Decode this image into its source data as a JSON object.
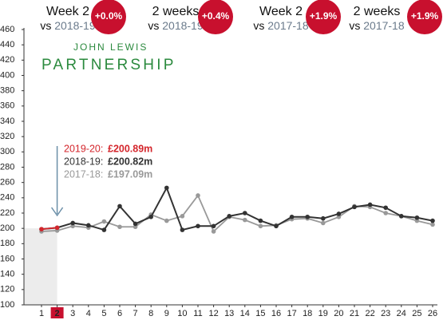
{
  "header": {
    "stats": [
      {
        "title": "Week 2",
        "vs": "vs",
        "period": "2018-19",
        "change": "+0.0%"
      },
      {
        "title": "2 weeks",
        "vs": "vs",
        "period": "2018-19",
        "change": "+0.4%"
      },
      {
        "title": "Week 2",
        "vs": "vs",
        "period": "2017-18",
        "change": "+1.9%"
      },
      {
        "title": "2 weeks",
        "vs": "vs",
        "period": "2017-18",
        "change": "+1.9%"
      }
    ]
  },
  "logo": {
    "line1": "JOHN LEWIS",
    "line2": "PARTNERSHIP"
  },
  "chart_data": {
    "type": "line",
    "categories": [
      "1",
      "2",
      "3",
      "4",
      "5",
      "6",
      "7",
      "8",
      "9",
      "10",
      "11",
      "12",
      "13",
      "14",
      "15",
      "16",
      "17",
      "18",
      "19",
      "20",
      "21",
      "22",
      "23",
      "24",
      "25",
      "26"
    ],
    "highlight_category": 1,
    "series": [
      {
        "name": "2019-20:",
        "total_label": "£200.89m",
        "color": "#d4262c",
        "values": [
          199,
          200.89,
          null,
          null,
          null,
          null,
          null,
          null,
          null,
          null,
          null,
          null,
          null,
          null,
          null,
          null,
          null,
          null,
          null,
          null,
          null,
          null,
          null,
          null,
          null,
          null
        ]
      },
      {
        "name": "2018-19:",
        "total_label": "£200.82m",
        "color": "#333333",
        "values": [
          199,
          200.82,
          207,
          204,
          198,
          229,
          206,
          215,
          253,
          198,
          203,
          203,
          216,
          220,
          210,
          203,
          215,
          215,
          213,
          219,
          228,
          231,
          227,
          216,
          214,
          210
        ]
      },
      {
        "name": "2017-18:",
        "total_label": "£197.09m",
        "color": "#999999",
        "values": [
          196,
          197.09,
          203,
          201,
          209,
          202,
          202,
          218,
          210,
          216,
          243,
          196,
          215,
          211,
          203,
          204,
          212,
          213,
          207,
          215,
          229,
          228,
          220,
          216,
          210,
          205
        ]
      }
    ],
    "ylim": [
      100,
      460
    ],
    "yticks": [
      100,
      120,
      140,
      160,
      180,
      200,
      220,
      240,
      260,
      280,
      300,
      320,
      340,
      360,
      380,
      400,
      420,
      440,
      460
    ],
    "grid": false
  }
}
